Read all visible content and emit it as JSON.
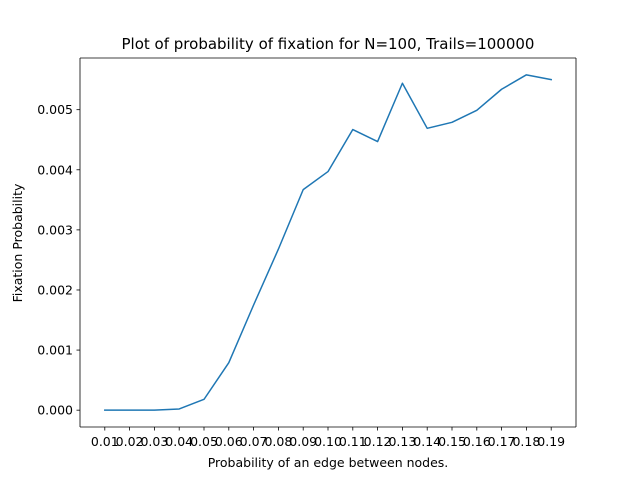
{
  "chart_data": {
    "type": "line",
    "title": "Plot of probability of fixation for N=100, Trails=100000",
    "xlabel": "Probability of an edge between nodes.",
    "ylabel": "Fixation Probability",
    "x": [
      "0.01",
      "0.02",
      "0.03",
      "0.04",
      "0.05",
      "0.06",
      "0.07",
      "0.08",
      "0.09",
      "0.10",
      "0.11",
      "0.12",
      "0.13",
      "0.14",
      "0.15",
      "0.16",
      "0.17",
      "0.18",
      "0.19"
    ],
    "series": [
      {
        "name": "",
        "color": "#1f77b4",
        "values": [
          0.0,
          0.0,
          0.0,
          2e-05,
          0.00018,
          0.00079,
          0.00175,
          0.00268,
          0.00367,
          0.00397,
          0.00467,
          0.00447,
          0.00544,
          0.00469,
          0.00479,
          0.00499,
          0.00534,
          0.00558,
          0.0055
        ]
      }
    ],
    "yticks": [
      "0.000",
      "0.001",
      "0.002",
      "0.003",
      "0.004",
      "0.005"
    ],
    "ylim": [
      -0.00028,
      0.00586
    ],
    "grid": false,
    "legend": "none"
  }
}
